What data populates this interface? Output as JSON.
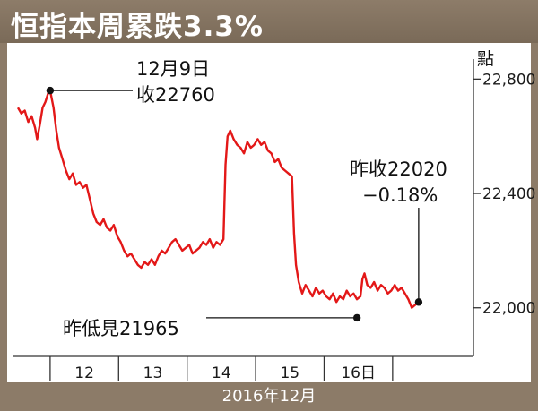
{
  "title": "恒指本周累跌3.3%",
  "footer": "2016年12月",
  "unit": "點",
  "colors": {
    "line": "#e31818",
    "frame": "#8c7b68",
    "axis": "#333333"
  },
  "annotations": {
    "high_date": "12月9日",
    "high_close": "收22760",
    "last_close": "昨收22020",
    "last_change": "−0.18%",
    "low": "昨低見21965"
  },
  "chart_data": {
    "type": "line",
    "title": "恒指本周累跌3.3%",
    "xlabel": "2016年12月",
    "ylabel": "點",
    "ylim": [
      21830,
      22870
    ],
    "yticks": [
      22000,
      22400,
      22800
    ],
    "ytick_labels": [
      "22,000",
      "22,400",
      "22,800"
    ],
    "x_sessions": [
      {
        "label": "",
        "start": 0,
        "end": 1
      },
      {
        "label": "12",
        "start": 1,
        "end": 2
      },
      {
        "label": "13",
        "start": 2,
        "end": 3
      },
      {
        "label": "14",
        "start": 3,
        "end": 4
      },
      {
        "label": "15",
        "start": 4,
        "end": 5
      },
      {
        "label": "16日",
        "start": 5,
        "end": 6
      }
    ],
    "series": [
      {
        "values": [
          [
            0.0,
            22700
          ],
          [
            0.05,
            22680
          ],
          [
            0.1,
            22690
          ],
          [
            0.15,
            22650
          ],
          [
            0.2,
            22670
          ],
          [
            0.25,
            22630
          ],
          [
            0.28,
            22590
          ],
          [
            0.32,
            22640
          ],
          [
            0.36,
            22700
          ],
          [
            0.4,
            22720
          ],
          [
            0.44,
            22750
          ],
          [
            0.47,
            22760
          ],
          [
            0.52,
            22700
          ],
          [
            0.56,
            22620
          ],
          [
            0.6,
            22560
          ],
          [
            0.65,
            22520
          ],
          [
            0.7,
            22480
          ],
          [
            0.75,
            22450
          ],
          [
            0.8,
            22470
          ],
          [
            0.85,
            22430
          ],
          [
            0.9,
            22440
          ],
          [
            0.95,
            22420
          ],
          [
            1.0,
            22430
          ],
          [
            1.05,
            22380
          ],
          [
            1.1,
            22330
          ],
          [
            1.15,
            22300
          ],
          [
            1.2,
            22290
          ],
          [
            1.25,
            22310
          ],
          [
            1.3,
            22280
          ],
          [
            1.35,
            22270
          ],
          [
            1.4,
            22290
          ],
          [
            1.45,
            22250
          ],
          [
            1.5,
            22230
          ],
          [
            1.55,
            22200
          ],
          [
            1.6,
            22180
          ],
          [
            1.65,
            22190
          ],
          [
            1.7,
            22170
          ],
          [
            1.75,
            22150
          ],
          [
            1.8,
            22140
          ],
          [
            1.85,
            22160
          ],
          [
            1.9,
            22150
          ],
          [
            1.95,
            22170
          ],
          [
            2.0,
            22150
          ],
          [
            2.05,
            22180
          ],
          [
            2.1,
            22200
          ],
          [
            2.15,
            22190
          ],
          [
            2.2,
            22210
          ],
          [
            2.25,
            22230
          ],
          [
            2.3,
            22240
          ],
          [
            2.35,
            22220
          ],
          [
            2.4,
            22200
          ],
          [
            2.45,
            22210
          ],
          [
            2.5,
            22220
          ],
          [
            2.55,
            22190
          ],
          [
            2.6,
            22200
          ],
          [
            2.65,
            22210
          ],
          [
            2.7,
            22230
          ],
          [
            2.75,
            22220
          ],
          [
            2.8,
            22240
          ],
          [
            2.85,
            22210
          ],
          [
            2.9,
            22230
          ],
          [
            2.95,
            22220
          ],
          [
            3.0,
            22240
          ],
          [
            3.03,
            22500
          ],
          [
            3.06,
            22600
          ],
          [
            3.1,
            22620
          ],
          [
            3.15,
            22590
          ],
          [
            3.2,
            22570
          ],
          [
            3.25,
            22560
          ],
          [
            3.3,
            22540
          ],
          [
            3.35,
            22580
          ],
          [
            3.4,
            22560
          ],
          [
            3.45,
            22570
          ],
          [
            3.5,
            22590
          ],
          [
            3.55,
            22570
          ],
          [
            3.6,
            22580
          ],
          [
            3.65,
            22550
          ],
          [
            3.7,
            22540
          ],
          [
            3.75,
            22510
          ],
          [
            3.8,
            22520
          ],
          [
            3.85,
            22490
          ],
          [
            3.9,
            22480
          ],
          [
            3.95,
            22470
          ],
          [
            4.0,
            22460
          ],
          [
            4.03,
            22260
          ],
          [
            4.06,
            22150
          ],
          [
            4.1,
            22090
          ],
          [
            4.15,
            22050
          ],
          [
            4.2,
            22080
          ],
          [
            4.25,
            22060
          ],
          [
            4.3,
            22040
          ],
          [
            4.35,
            22070
          ],
          [
            4.4,
            22050
          ],
          [
            4.45,
            22060
          ],
          [
            4.5,
            22040
          ],
          [
            4.55,
            22030
          ],
          [
            4.6,
            22050
          ],
          [
            4.65,
            22020
          ],
          [
            4.7,
            22040
          ],
          [
            4.75,
            22030
          ],
          [
            4.8,
            22060
          ],
          [
            4.85,
            22040
          ],
          [
            4.9,
            22050
          ],
          [
            4.95,
            22030
          ],
          [
            5.0,
            22040
          ],
          [
            5.03,
            22100
          ],
          [
            5.06,
            22120
          ],
          [
            5.1,
            22080
          ],
          [
            5.15,
            22070
          ],
          [
            5.2,
            22090
          ],
          [
            5.25,
            22060
          ],
          [
            5.3,
            22080
          ],
          [
            5.35,
            22070
          ],
          [
            5.4,
            22050
          ],
          [
            5.45,
            22060
          ],
          [
            5.5,
            22080
          ],
          [
            5.55,
            22060
          ],
          [
            5.6,
            22070
          ],
          [
            5.65,
            22050
          ],
          [
            5.7,
            22030
          ],
          [
            5.75,
            22000
          ],
          [
            5.8,
            22010
          ],
          [
            5.85,
            22020
          ]
        ]
      }
    ],
    "highlights": {
      "high": {
        "x": 0.47,
        "y": 22760
      },
      "low": {
        "x": 4.95,
        "y": 21965
      },
      "last": {
        "x": 5.85,
        "y": 22020
      }
    }
  }
}
